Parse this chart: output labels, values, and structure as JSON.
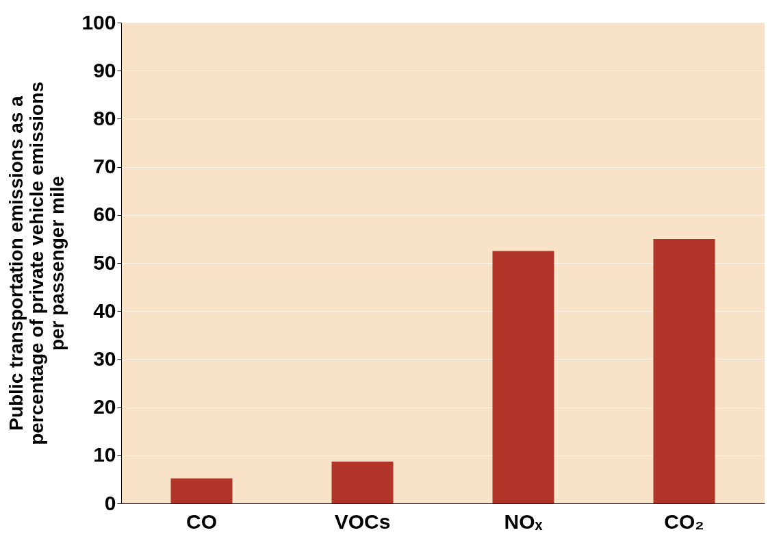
{
  "chart_data": {
    "type": "bar",
    "ylabel": "Public transportation emissions as a\npercentage of private vehicle emissions\nper passenger mile",
    "categories": [
      "CO",
      "VOCs",
      "NOₓ",
      "CO₂"
    ],
    "values": [
      5.2,
      8.7,
      52.5,
      55
    ],
    "color": "#b03427",
    "ylim": [
      0,
      100
    ],
    "yticks": [
      0,
      10,
      20,
      30,
      40,
      50,
      60,
      70,
      80,
      90,
      100
    ],
    "grid": "y"
  }
}
